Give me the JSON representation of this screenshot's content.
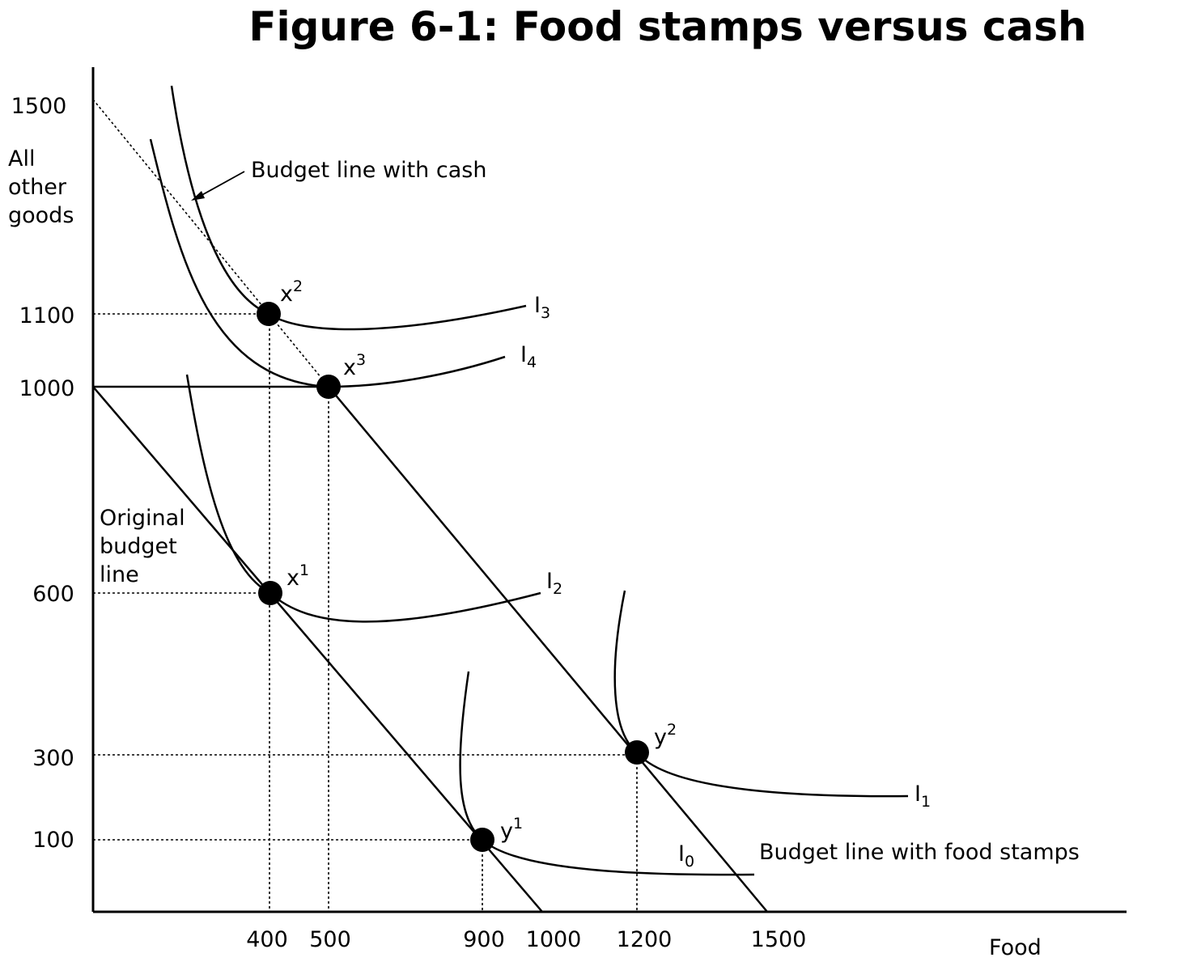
{
  "title": "Figure 6-1: Food stamps versus cash",
  "axes": {
    "x_label": "Food",
    "y_label_lines": [
      "All",
      "other",
      "goods"
    ],
    "x_ticks": [
      "400",
      "500",
      "900",
      "1000",
      "1200",
      "1500"
    ],
    "y_ticks": [
      "1500",
      "1100",
      "1000",
      "600",
      "300",
      "100"
    ]
  },
  "annotations": {
    "budget_cash": "Budget line with cash",
    "budget_food_stamps": "Budget line with food stamps",
    "original_budget_lines": [
      "Original",
      "budget",
      "line"
    ]
  },
  "points": [
    {
      "base": "x",
      "sup": "2",
      "food": 400,
      "other": 1100
    },
    {
      "base": "x",
      "sup": "3",
      "food": 500,
      "other": 1000
    },
    {
      "base": "x",
      "sup": "1",
      "food": 400,
      "other": 600
    },
    {
      "base": "y",
      "sup": "2",
      "food": 1200,
      "other": 300
    },
    {
      "base": "y",
      "sup": "1",
      "food": 900,
      "other": 100
    }
  ],
  "curves": [
    {
      "base": "I",
      "sub": "3"
    },
    {
      "base": "I",
      "sub": "4"
    },
    {
      "base": "I",
      "sub": "2"
    },
    {
      "base": "I",
      "sub": "1"
    },
    {
      "base": "I",
      "sub": "0"
    }
  ]
}
